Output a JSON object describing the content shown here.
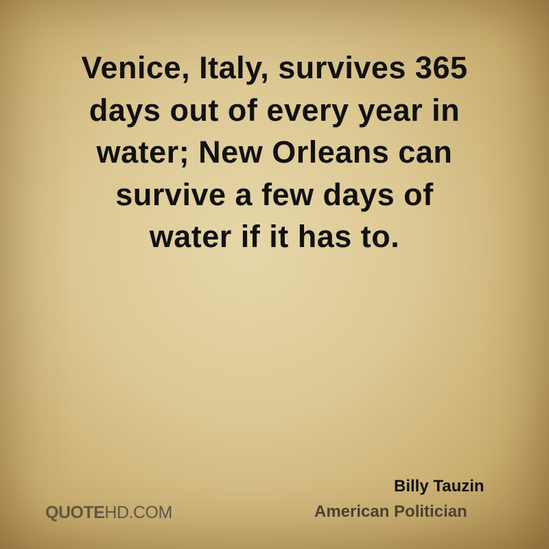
{
  "quote": {
    "lines": [
      "Venice, Italy, survives 365",
      "days out of every year in",
      "water; New Orleans can",
      "survive a few days of",
      "water if it has to."
    ]
  },
  "author": {
    "name": "Billy Tauzin",
    "title": "American Politician"
  },
  "watermark": {
    "bold": "QUOTE",
    "rest": "HD.COM"
  },
  "colors": {
    "background": "#dcc893",
    "text": "#111111"
  }
}
